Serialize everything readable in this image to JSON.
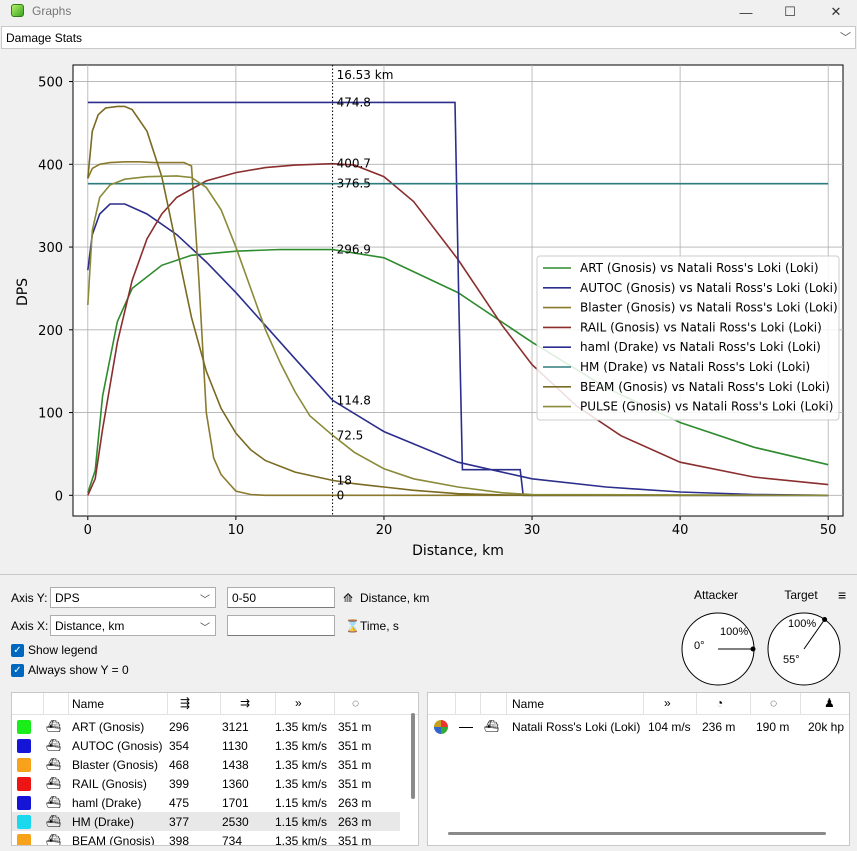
{
  "window": {
    "title": "Graphs",
    "minimize": "—",
    "maximize": "☐",
    "close": "✕"
  },
  "graph_type": "Damage Stats",
  "chart_data": {
    "type": "line",
    "xlabel": "Distance, km",
    "ylabel": "DPS",
    "xlim": [
      -1,
      51
    ],
    "ylim": [
      -25,
      520
    ],
    "xticks": [
      0,
      10,
      20,
      30,
      40,
      50
    ],
    "yticks": [
      0,
      100,
      200,
      300,
      400,
      500
    ],
    "grid": true,
    "legend_position": "right",
    "marker_label": "16.53 km",
    "marker_x": 16.53,
    "marker_values": [
      "474.8",
      "400.7",
      "376.5",
      "296.9",
      "114.8",
      "72.5",
      "18",
      "0"
    ],
    "series": [
      {
        "name": "ART (Gnosis) vs Natali Ross's Loki (Loki)",
        "color": "#2e8b2e",
        "x": [
          0,
          0.5,
          1,
          2,
          3,
          5,
          7,
          10,
          13,
          16.53,
          20,
          25,
          30,
          35,
          40,
          45,
          50
        ],
        "y": [
          3,
          30,
          120,
          210,
          250,
          278,
          290,
          295,
          297,
          296.9,
          287,
          245,
          185,
          130,
          88,
          58,
          37
        ]
      },
      {
        "name": "AUTOC (Gnosis) vs Natali Ross's Loki (Loki)",
        "color": "#2b2e8c",
        "x": [
          0,
          0.3,
          0.8,
          1.5,
          2.5,
          4,
          6,
          8,
          10,
          12,
          14,
          16.53,
          20,
          25,
          30,
          35,
          40,
          45,
          50
        ],
        "y": [
          272,
          315,
          340,
          352,
          352,
          340,
          315,
          282,
          245,
          205,
          165,
          114.8,
          77,
          40,
          20,
          10,
          4,
          1,
          0
        ]
      },
      {
        "name": "Blaster (Gnosis) vs Natali Ross's Loki (Loki)",
        "color": "#8b7a2e",
        "x": [
          0,
          0.3,
          0.8,
          1.5,
          2.5,
          3.5,
          4.5,
          5.5,
          6.5,
          7,
          7.5,
          8,
          8.5,
          9,
          9.5,
          10,
          11,
          12,
          15,
          50
        ],
        "y": [
          383,
          395,
          400,
          402,
          403,
          403,
          402,
          402,
          402,
          398,
          260,
          100,
          45,
          25,
          15,
          5,
          1,
          0,
          0,
          0
        ]
      },
      {
        "name": "RAIL (Gnosis) vs Natali Ross's Loki (Loki)",
        "color": "#8b2e2e",
        "x": [
          0,
          0.5,
          1,
          2,
          3,
          4,
          5,
          6,
          8,
          10,
          12,
          14,
          16.53,
          18,
          20,
          22,
          25,
          28,
          30,
          33,
          36,
          40,
          45,
          50
        ],
        "y": [
          0,
          20,
          80,
          185,
          260,
          310,
          340,
          360,
          380,
          390,
          396,
          399,
          400.7,
          399,
          385,
          355,
          285,
          205,
          158,
          108,
          72,
          40,
          22,
          13
        ]
      },
      {
        "name": "haml  (Drake) vs Natali Ross's Loki (Loki)",
        "color": "#2b2e8c",
        "x": [
          0,
          1,
          5,
          10,
          15,
          16.53,
          20,
          24.8,
          25.05,
          25.3,
          29.2,
          29.4,
          36,
          40,
          45,
          50
        ],
        "y": [
          474.8,
          474.8,
          474.8,
          474.8,
          474.8,
          474.8,
          474.8,
          474.8,
          240,
          31,
          31,
          0,
          0,
          0,
          0,
          0
        ]
      },
      {
        "name": "HM (Drake) vs Natali Ross's Loki (Loki)",
        "color": "#2e7b7b",
        "x": [
          0,
          50
        ],
        "y": [
          376.5,
          376.5
        ]
      },
      {
        "name": "BEAM (Gnosis) vs Natali Ross's Loki (Loki)",
        "color": "#7a6a22",
        "x": [
          0,
          0.3,
          0.7,
          1.2,
          2,
          2.5,
          3,
          4,
          5,
          6,
          7,
          8,
          9,
          10,
          11,
          12,
          14,
          16.53,
          18,
          20,
          22,
          25,
          28,
          30,
          50
        ],
        "y": [
          383,
          440,
          460,
          468,
          470,
          470,
          466,
          440,
          385,
          300,
          215,
          150,
          105,
          75,
          55,
          42,
          28,
          18,
          14,
          10,
          6,
          2,
          0.5,
          0,
          0
        ]
      },
      {
        "name": "PULSE (Gnosis) vs Natali Ross's Loki (Loki)",
        "color": "#8a8a3a",
        "x": [
          0,
          0.3,
          0.8,
          1.5,
          2.5,
          4,
          6,
          7,
          8,
          9,
          10,
          11,
          12,
          13,
          14,
          15,
          16.53,
          18,
          20,
          22,
          25,
          28,
          30,
          50
        ],
        "y": [
          230,
          320,
          360,
          375,
          382,
          385,
          386,
          384,
          372,
          345,
          300,
          250,
          200,
          160,
          125,
          96,
          72.5,
          52,
          32,
          20,
          10,
          3,
          1,
          0
        ]
      }
    ]
  },
  "controls": {
    "axis_y_label": "Axis Y:",
    "axis_y_value": "DPS",
    "axis_y_range": "0-50",
    "axis_y_icon_label": "Distance, km",
    "axis_x_label": "Axis X:",
    "axis_x_value": "Distance, km",
    "axis_x_range": "",
    "axis_x_icon_label": "Time, s",
    "show_legend": "Show legend",
    "always_show_y0": "Always show Y = 0",
    "attacker_title": "Attacker",
    "target_title": "Target",
    "attacker_percent": "100%",
    "attacker_angle": "0°",
    "target_percent": "100%",
    "target_angle": "55°",
    "menu_icon": "≡"
  },
  "sources_table": {
    "headers": [
      "Name",
      "",
      "",
      "",
      ""
    ],
    "rows": [
      {
        "color": "#1aee1a",
        "name": "ART (Gnosis)",
        "c1": "296",
        "c2": "3121",
        "c3": "1.35 km/s",
        "c4": "351 m"
      },
      {
        "color": "#1515d8",
        "name": "AUTOC (Gnosis)",
        "c1": "354",
        "c2": "1130",
        "c3": "1.35 km/s",
        "c4": "351 m"
      },
      {
        "color": "#f7a21a",
        "name": "Blaster (Gnosis)",
        "c1": "468",
        "c2": "1438",
        "c3": "1.35 km/s",
        "c4": "351 m"
      },
      {
        "color": "#ee1515",
        "name": "RAIL (Gnosis)",
        "c1": "399",
        "c2": "1360",
        "c3": "1.35 km/s",
        "c4": "351 m"
      },
      {
        "color": "#1515d8",
        "name": "haml  (Drake)",
        "c1": "475",
        "c2": "1701",
        "c3": "1.15 km/s",
        "c4": "263 m"
      },
      {
        "color": "#1ad8ee",
        "name": "HM (Drake)",
        "c1": "377",
        "c2": "2530",
        "c3": "1.15 km/s",
        "c4": "263 m"
      },
      {
        "color": "#f7a21a",
        "name": "BEAM (Gnosis)",
        "c1": "398",
        "c2": "734",
        "c3": "1.35 km/s",
        "c4": "351 m"
      }
    ]
  },
  "targets_table": {
    "headers": [
      "Name",
      "",
      "",
      "",
      ""
    ],
    "rows": [
      {
        "name": "Natali Ross's Loki (Loki)",
        "c1": "104 m/s",
        "c2": "236 m",
        "c3": "190 m",
        "c4": "20k hp"
      }
    ]
  },
  "icons": {
    "ship_icon": "ship-icon",
    "speed_icon": "speed-icon",
    "range_icon": "range-icon",
    "radius_icon": "radius-icon",
    "hp_icon": "hp-icon"
  }
}
